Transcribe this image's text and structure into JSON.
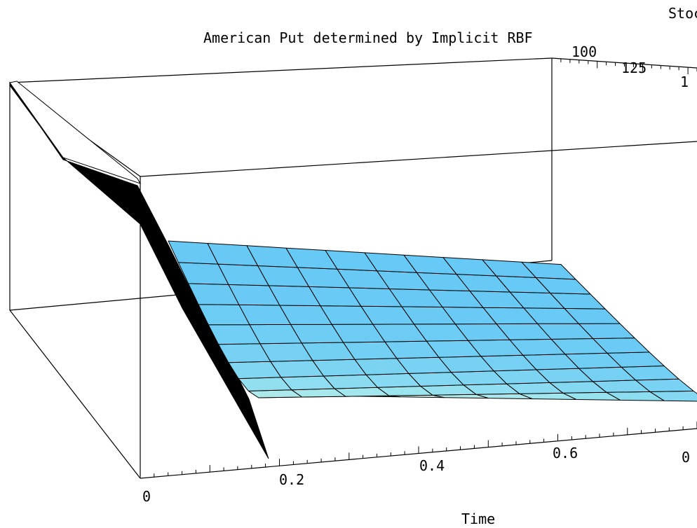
{
  "chart_data": {
    "type": "surface3d",
    "title": "American Put determined by Implicit RBF",
    "xlabel": "Time",
    "ylabel": "Stoc",
    "x_ticks": [
      "0",
      "0.2",
      "0.4",
      "0.6"
    ],
    "y_ticks": [
      "100",
      "125",
      "1"
    ],
    "right_edge_fragment": "0",
    "time_values": [
      0.16,
      0.23,
      0.31,
      0.39,
      0.47,
      0.55,
      0.63,
      0.71,
      0.79,
      0.87,
      0.95
    ],
    "stock_values": [
      75,
      85,
      95,
      105,
      115,
      125,
      135,
      145,
      155,
      165,
      175
    ],
    "colors": {
      "surface_low": "#66c8f5",
      "surface_mid": "#9fe6ee",
      "surface_high": "#d8f3e2",
      "front_face": "#dde6e0",
      "edge_face": "#000000",
      "lines": "#000000"
    }
  }
}
